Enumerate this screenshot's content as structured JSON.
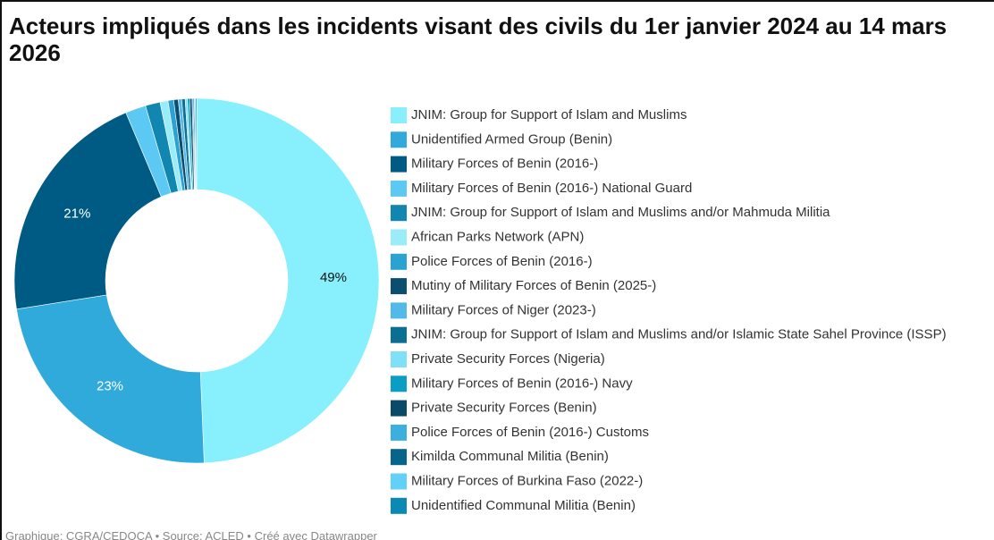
{
  "chart_data": {
    "type": "donut",
    "title": "Acteurs impliqués dans les incidents visant des civils du 1er janvier 2024 au 14 mars 2026",
    "source": "Graphique: CGRA/CEDOCA • Source: ACLED • Créé avec Datawrapper",
    "categories": [
      "JNIM: Group for Support of Islam and Muslims",
      "Unidentified Armed Group (Benin)",
      "Military Forces of Benin (2016-)",
      "Military Forces of Benin (2016-) National Guard",
      "JNIM: Group for Support of Islam and Muslims and/or Mahmuda Militia",
      "African Parks Network (APN)",
      "Police Forces of Benin (2016-)",
      "Mutiny of Military Forces of Benin (2025-)",
      "Military Forces of Niger (2023-)",
      "JNIM: Group for Support of Islam and Muslims and/or Islamic State Sahel Province (ISSP)",
      "Private Security Forces (Nigeria)",
      "Military Forces of Benin (2016-) Navy",
      "Private Security Forces (Benin)",
      "Police Forces of Benin (2016-) Customs",
      "Kimilda Communal Militia (Benin)",
      "Military Forces of Burkina Faso (2022-)",
      "Unidentified Communal Militia (Benin)"
    ],
    "values": [
      49,
      23,
      21,
      1.8,
      1.3,
      0.7,
      0.5,
      0.4,
      0.3,
      0.3,
      0.2,
      0.2,
      0.2,
      0.1,
      0.1,
      0.1,
      0.1
    ],
    "value_labels": [
      "49%",
      "23%",
      "21%",
      null,
      null,
      null,
      null,
      null,
      null,
      null,
      null,
      null,
      null,
      null,
      null,
      null,
      null
    ],
    "colors": [
      "#88f0fc",
      "#30aadb",
      "#005b84",
      "#5cc8f4",
      "#1086b0",
      "#9aedf8",
      "#2aa3d3",
      "#0c4e70",
      "#52b9e8",
      "#0b6e93",
      "#80e0f7",
      "#0a9ec4",
      "#0a4a68",
      "#3bb0de",
      "#07648a",
      "#62d1f7",
      "#0a89b5"
    ],
    "label_colors": [
      "#111",
      "#fff",
      "#fff",
      null,
      null,
      null,
      null,
      null,
      null,
      null,
      null,
      null,
      null,
      null,
      null,
      null,
      null
    ]
  }
}
